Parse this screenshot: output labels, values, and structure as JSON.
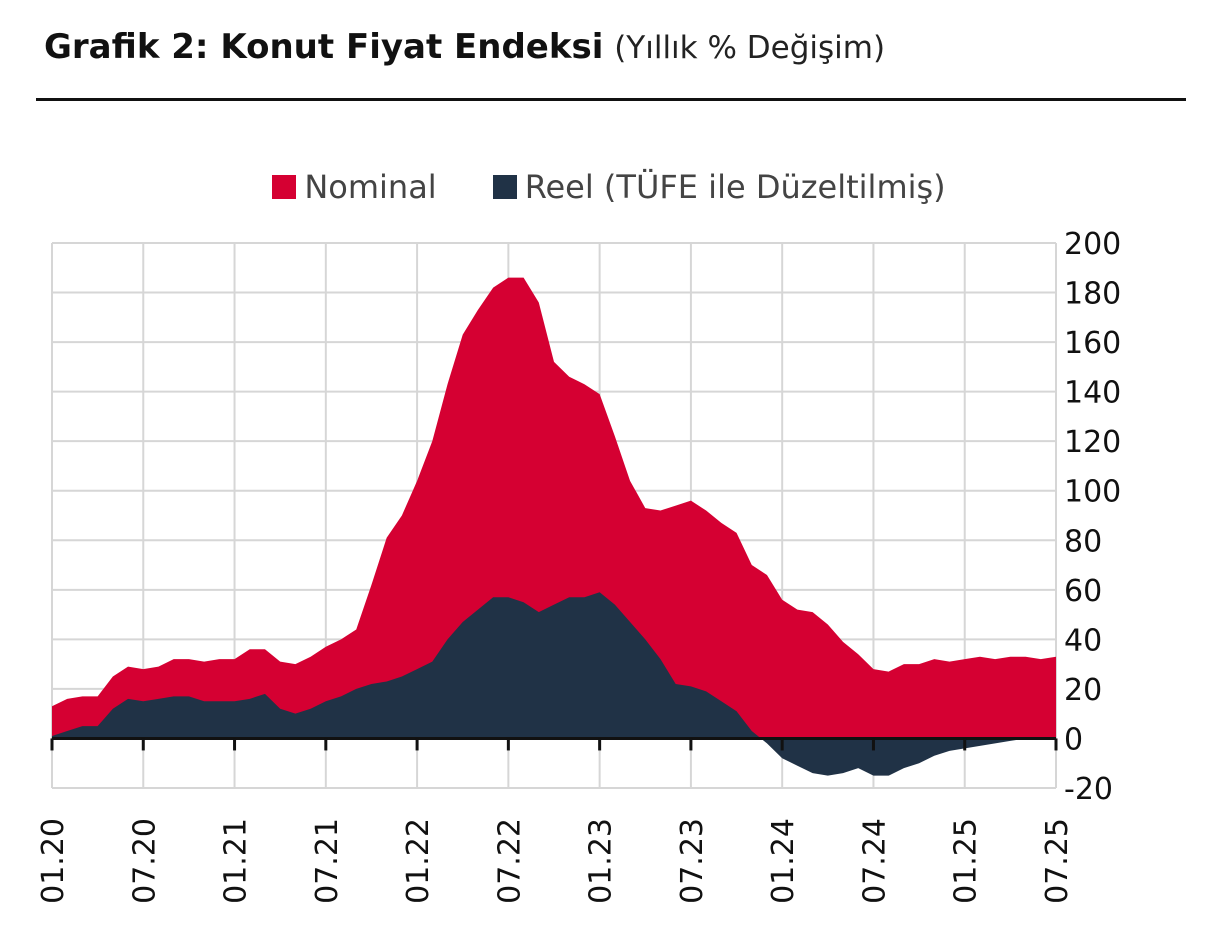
{
  "header": {
    "title": "Grafik 2: Konut Fiyat Endeksi",
    "subtitle": "(Yıllık % Değişim)"
  },
  "chart_data": {
    "type": "area",
    "title": "Grafik 2: Konut Fiyat Endeksi",
    "subtitle": "(Yıllık % Değişim)",
    "ylim": [
      -20,
      200
    ],
    "yticks": [
      -20,
      0,
      20,
      40,
      60,
      80,
      100,
      120,
      140,
      160,
      180,
      200
    ],
    "xtick_labels": [
      "01.20",
      "07.20",
      "01.21",
      "07.21",
      "01.22",
      "07.22",
      "01.23",
      "07.23",
      "01.24",
      "07.24",
      "01.25",
      "07.25"
    ],
    "grid": true,
    "legend_position": "top-center",
    "x": [
      "01.20",
      "02.20",
      "03.20",
      "04.20",
      "05.20",
      "06.20",
      "07.20",
      "08.20",
      "09.20",
      "10.20",
      "11.20",
      "12.20",
      "01.21",
      "02.21",
      "03.21",
      "04.21",
      "05.21",
      "06.21",
      "07.21",
      "08.21",
      "09.21",
      "10.21",
      "11.21",
      "12.21",
      "01.22",
      "02.22",
      "03.22",
      "04.22",
      "05.22",
      "06.22",
      "07.22",
      "08.22",
      "09.22",
      "10.22",
      "11.22",
      "12.22",
      "01.23",
      "02.23",
      "03.23",
      "04.23",
      "05.23",
      "06.23",
      "07.23",
      "08.23",
      "09.23",
      "10.23",
      "11.23",
      "12.23",
      "01.24",
      "02.24",
      "03.24",
      "04.24",
      "05.24",
      "06.24",
      "07.24",
      "08.24",
      "09.24",
      "10.24",
      "11.24",
      "12.24",
      "01.25",
      "02.25",
      "03.25",
      "04.25",
      "05.25",
      "06.25",
      "07.25"
    ],
    "series": [
      {
        "name": "Nominal",
        "color": "#d50032",
        "values": [
          13,
          16,
          17,
          17,
          25,
          29,
          28,
          29,
          32,
          32,
          31,
          32,
          32,
          36,
          36,
          31,
          30,
          33,
          37,
          40,
          44,
          62,
          81,
          90,
          104,
          120,
          143,
          163,
          173,
          182,
          186,
          186,
          176,
          152,
          146,
          143,
          139,
          122,
          104,
          93,
          92,
          94,
          96,
          92,
          87,
          83,
          70,
          66,
          56,
          52,
          51,
          46,
          39,
          34,
          28,
          27,
          30,
          30,
          32,
          31,
          32,
          33,
          32,
          33,
          33,
          32,
          33
        ]
      },
      {
        "name": "Reel (TÜFE ile Düzeltilmiş)",
        "color": "#203246",
        "values": [
          1,
          3,
          5,
          5,
          12,
          16,
          15,
          16,
          17,
          17,
          15,
          15,
          15,
          16,
          18,
          12,
          10,
          12,
          15,
          17,
          20,
          22,
          23,
          25,
          28,
          31,
          40,
          47,
          52,
          57,
          57,
          55,
          51,
          54,
          57,
          57,
          59,
          54,
          47,
          40,
          32,
          22,
          21,
          19,
          15,
          11,
          3,
          -2,
          -8,
          -11,
          -14,
          -15,
          -14,
          -12,
          -15,
          -15,
          -12,
          -10,
          -7,
          -5,
          -4,
          -3,
          -2,
          -1,
          0,
          0,
          0
        ]
      }
    ]
  }
}
